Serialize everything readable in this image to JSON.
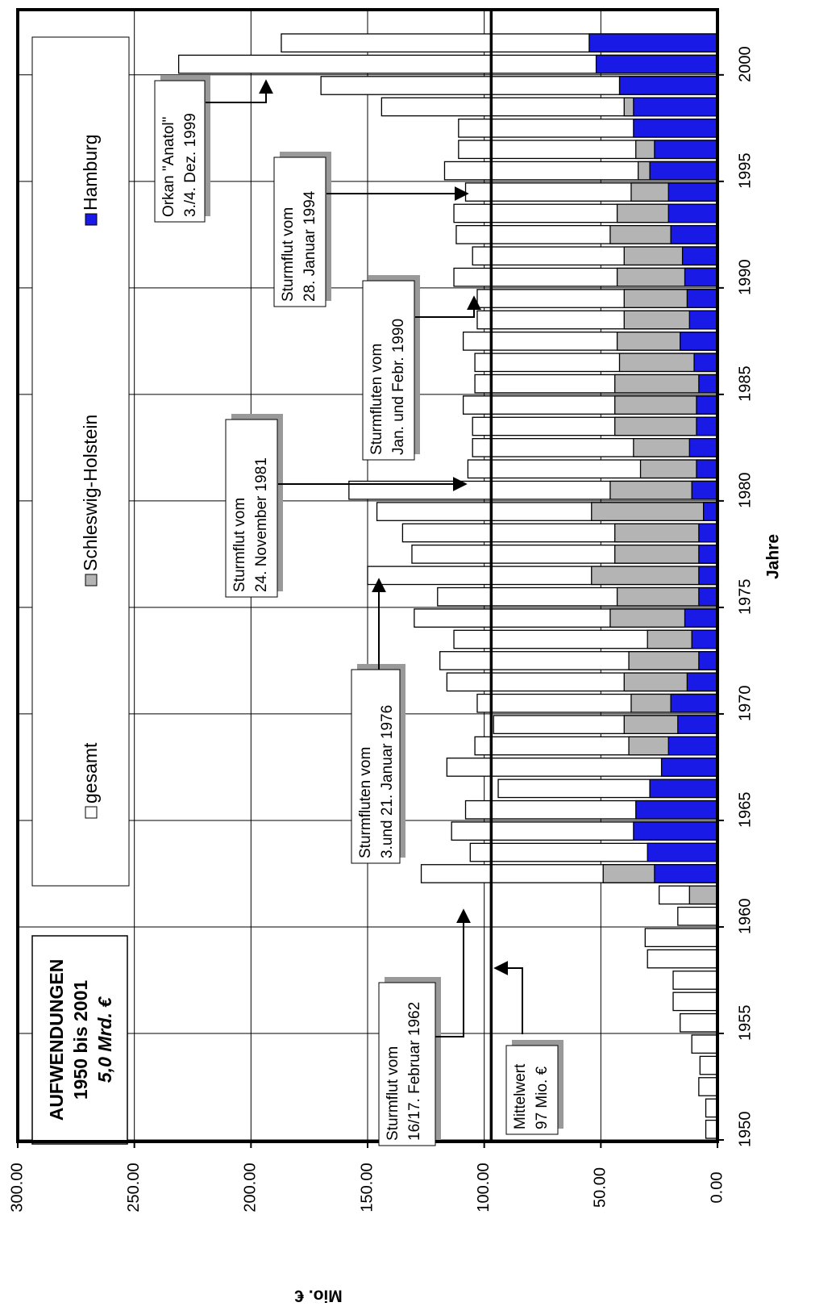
{
  "chart_data": {
    "type": "bar",
    "title": [
      "AUFWENDUNGEN",
      "1950 bis 2001"
    ],
    "subtitle": "5,0 Mrd. €",
    "x_label": "Jahre",
    "y_label": "Mio. €",
    "x": [
      1950,
      1951,
      1952,
      1953,
      1954,
      1955,
      1956,
      1957,
      1958,
      1959,
      1960,
      1961,
      1962,
      1963,
      1964,
      1965,
      1966,
      1967,
      1968,
      1969,
      1970,
      1971,
      1972,
      1973,
      1974,
      1975,
      1976,
      1977,
      1978,
      1979,
      1980,
      1981,
      1982,
      1983,
      1984,
      1985,
      1986,
      1987,
      1988,
      1989,
      1990,
      1991,
      1992,
      1993,
      1994,
      1995,
      1996,
      1997,
      1998,
      1999,
      2000,
      2001
    ],
    "series": [
      {
        "name": "gesamt",
        "color": "#ffffff",
        "values": [
          5,
          5,
          8,
          7.5,
          11,
          16,
          19,
          19,
          30,
          31,
          17,
          25,
          127,
          106,
          114,
          108,
          94,
          116,
          104,
          96,
          103,
          116,
          119,
          113,
          130,
          120,
          150,
          131,
          135,
          146,
          158,
          107,
          105,
          105,
          109,
          104,
          104,
          109,
          103,
          103,
          113,
          105,
          112,
          113,
          108,
          117,
          111,
          111,
          144,
          170,
          231,
          187
        ]
      },
      {
        "name": "Schleswig-Holstein",
        "color": "#b4b4b4",
        "values": [
          null,
          null,
          null,
          null,
          null,
          null,
          null,
          null,
          null,
          null,
          null,
          12,
          49,
          null,
          null,
          null,
          null,
          null,
          38,
          40,
          37,
          40,
          38,
          30,
          46,
          43,
          54,
          44,
          44,
          54,
          46,
          33,
          36,
          44,
          44,
          44,
          42,
          43,
          40,
          40,
          43,
          40,
          46,
          43,
          37,
          34,
          35,
          null,
          40,
          null,
          null,
          null
        ]
      },
      {
        "name": "Hamburg",
        "color": "#1a1ae6",
        "values": [
          null,
          null,
          null,
          null,
          null,
          null,
          null,
          null,
          null,
          null,
          null,
          null,
          27,
          30,
          36,
          35,
          29,
          24,
          21,
          17,
          20,
          13,
          8,
          11,
          14,
          8,
          8,
          8,
          8,
          6,
          11,
          9,
          12,
          9,
          9,
          8,
          10,
          16,
          12,
          13,
          14,
          15,
          20,
          21,
          21,
          29,
          27,
          36,
          36,
          42,
          52,
          55
        ]
      }
    ],
    "mean": 97,
    "xlim": [
      1950,
      2002
    ],
    "xticks": [
      1950,
      1955,
      1960,
      1965,
      1970,
      1975,
      1980,
      1985,
      1990,
      1995,
      2000
    ],
    "ylim": [
      0,
      300
    ],
    "yticks": [
      {
        "value": 0,
        "label": "0.00"
      },
      {
        "value": 50,
        "label": "50.00"
      },
      {
        "value": 100,
        "label": "100.00"
      },
      {
        "value": 150,
        "label": "150.00"
      },
      {
        "value": 200,
        "label": "200.00"
      },
      {
        "value": 250,
        "label": "250.00"
      },
      {
        "value": 300,
        "label": "300.00"
      }
    ],
    "grid": true,
    "annotations": [
      {
        "text": [
          "Sturmflut vom",
          "16/17. Februar 1962"
        ]
      },
      {
        "text": [
          "Mittelwert",
          "97 Mio. €"
        ]
      },
      {
        "text": [
          "Sturmfluten vom",
          "3.und 21. Januar 1976"
        ]
      },
      {
        "text": [
          "Sturmflut vom",
          "24. November 1981"
        ]
      },
      {
        "text": [
          "Sturmfluten vom",
          "Jan. und Febr. 1990"
        ]
      },
      {
        "text": [
          "Sturmflut vom",
          "28. Januar 1994"
        ]
      },
      {
        "text": [
          "Orkan \"Anatol\"",
          "3./4. Dez. 1999"
        ]
      }
    ]
  }
}
